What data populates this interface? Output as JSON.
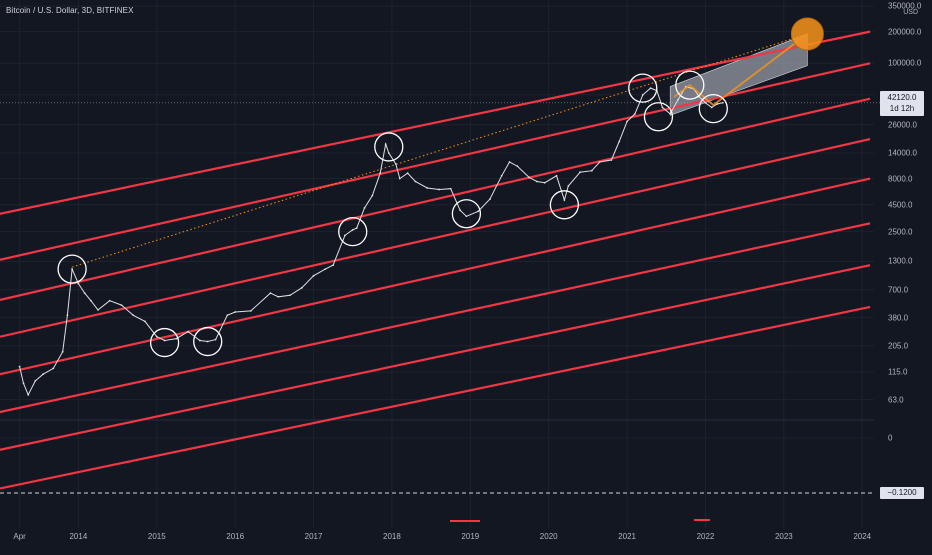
{
  "header": {
    "title": "Bitcoin / U.S. Dollar, 3D, BITFINEX",
    "currency": "USD"
  },
  "price_tag": {
    "price": "42120.0",
    "countdown": "1d 12h"
  },
  "indicator_tag": "−0.1200",
  "colors": {
    "background": "#131722",
    "channel": "#f23645",
    "price": "#e0e0e0",
    "highlight": "#f7931a",
    "projection_box": "#c6cad6"
  },
  "chart_data": {
    "type": "line",
    "scale": "log",
    "title": "",
    "y_tick_labels": [
      "350000.0",
      "200000.0",
      "100000.0",
      "50000.0",
      "26000.0",
      "14000.0",
      "8000.0",
      "4500.0",
      "2500.0",
      "1300.0",
      "700.0",
      "380.0",
      "205.0",
      "115.0",
      "63.0"
    ],
    "y_tick_values": [
      350000,
      200000,
      100000,
      50000,
      26000,
      14000,
      8000,
      4500,
      2500,
      1300,
      700,
      380,
      205,
      115,
      63
    ],
    "indicator_tick_labels": [
      "0"
    ],
    "x_tick_labels": [
      "Apr",
      "2014",
      "2015",
      "2016",
      "2017",
      "2018",
      "2019",
      "2020",
      "2021",
      "2022",
      "2023",
      "2024"
    ],
    "x_tick_values": [
      2013.25,
      2014,
      2015,
      2016,
      2017,
      2018,
      2019,
      2020,
      2021,
      2022,
      2023,
      2024
    ],
    "ylim": [
      45,
      400000
    ],
    "xlim": [
      2013.0,
      2024.15
    ],
    "series": [
      {
        "type": "price",
        "x": [
          2013.25,
          2013.3,
          2013.36,
          2013.45,
          2013.55,
          2013.68,
          2013.8,
          2013.86,
          2013.92,
          2014.0,
          2014.08,
          2014.16,
          2014.25,
          2014.4,
          2014.55,
          2014.7,
          2014.85,
          2015.0,
          2015.1,
          2015.25,
          2015.4,
          2015.55,
          2015.65,
          2015.75,
          2015.9,
          2016.0,
          2016.2,
          2016.45,
          2016.55,
          2016.7,
          2016.85,
          2017.0,
          2017.15,
          2017.25,
          2017.4,
          2017.5,
          2017.55,
          2017.65,
          2017.75,
          2017.85,
          2017.92,
          2017.96,
          2018.05,
          2018.1,
          2018.2,
          2018.3,
          2018.45,
          2018.6,
          2018.75,
          2018.87,
          2018.95,
          2019.1,
          2019.25,
          2019.4,
          2019.5,
          2019.6,
          2019.75,
          2019.85,
          2019.95,
          2020.1,
          2020.2,
          2020.25,
          2020.4,
          2020.55,
          2020.65,
          2020.8,
          2020.9,
          2021.0,
          2021.1,
          2021.2,
          2021.3,
          2021.38,
          2021.45,
          2021.55,
          2021.65,
          2021.75,
          2021.85,
          2021.92,
          2022.0,
          2022.08,
          2022.15,
          2022.22
        ],
        "y": [
          130,
          90,
          70,
          95,
          110,
          125,
          180,
          400,
          1100,
          800,
          650,
          550,
          450,
          550,
          500,
          400,
          350,
          250,
          230,
          240,
          280,
          230,
          225,
          235,
          400,
          430,
          440,
          650,
          600,
          620,
          730,
          950,
          1100,
          1200,
          2300,
          2600,
          2700,
          4200,
          5500,
          9000,
          17000,
          14000,
          11000,
          8000,
          9000,
          7500,
          6500,
          6300,
          6400,
          4000,
          3500,
          3900,
          5100,
          8500,
          11500,
          10500,
          8200,
          7500,
          7300,
          8500,
          5000,
          6800,
          9200,
          9500,
          11500,
          12000,
          18000,
          28000,
          33000,
          50000,
          58000,
          55000,
          38000,
          33000,
          45000,
          60000,
          57000,
          48000,
          42000,
          38000,
          41000,
          42120
        ]
      }
    ],
    "channel_lines": [
      {
        "x": [
          2013.0,
          2024.1
        ],
        "y": [
          3700,
          200000
        ]
      },
      {
        "x": [
          2013.0,
          2024.1
        ],
        "y": [
          1350,
          100000
        ]
      },
      {
        "x": [
          2013.0,
          2024.1
        ],
        "y": [
          560,
          46000
        ]
      },
      {
        "x": [
          2013.0,
          2024.1
        ],
        "y": [
          250,
          19000
        ]
      },
      {
        "x": [
          2013.0,
          2024.1
        ],
        "y": [
          110,
          8000
        ]
      },
      {
        "x": [
          2013.0,
          2024.1
        ],
        "y": [
          48,
          3000
        ]
      },
      {
        "x": [
          2013.0,
          2024.1
        ],
        "y": [
          21,
          1200
        ]
      },
      {
        "x": [
          2013.0,
          2024.1
        ],
        "y": [
          9,
          480
        ]
      }
    ],
    "annotations": {
      "circled_points": [
        {
          "x": 2013.92,
          "y": 1100
        },
        {
          "x": 2015.1,
          "y": 220
        },
        {
          "x": 2015.65,
          "y": 225
        },
        {
          "x": 2017.5,
          "y": 2500
        },
        {
          "x": 2017.96,
          "y": 16000
        },
        {
          "x": 2018.95,
          "y": 3700
        },
        {
          "x": 2020.2,
          "y": 4500
        },
        {
          "x": 2021.2,
          "y": 58000
        },
        {
          "x": 2021.4,
          "y": 31000
        },
        {
          "x": 2021.8,
          "y": 62000
        },
        {
          "x": 2022.1,
          "y": 37000
        }
      ],
      "projection_target": {
        "x": 2023.3,
        "y": 190000
      },
      "dotted_trend": {
        "x": [
          2013.92,
          2023.3
        ],
        "y": [
          1150,
          190000
        ]
      },
      "projection_box": {
        "x": [
          2021.55,
          2023.3
        ],
        "y_upper": [
          60000,
          190000
        ],
        "y_lower": [
          32000,
          95000
        ]
      },
      "orange_path": {
        "x": [
          2021.6,
          2021.8,
          2022.1,
          2023.3
        ],
        "y": [
          48000,
          62000,
          40000,
          190000
        ]
      }
    }
  }
}
